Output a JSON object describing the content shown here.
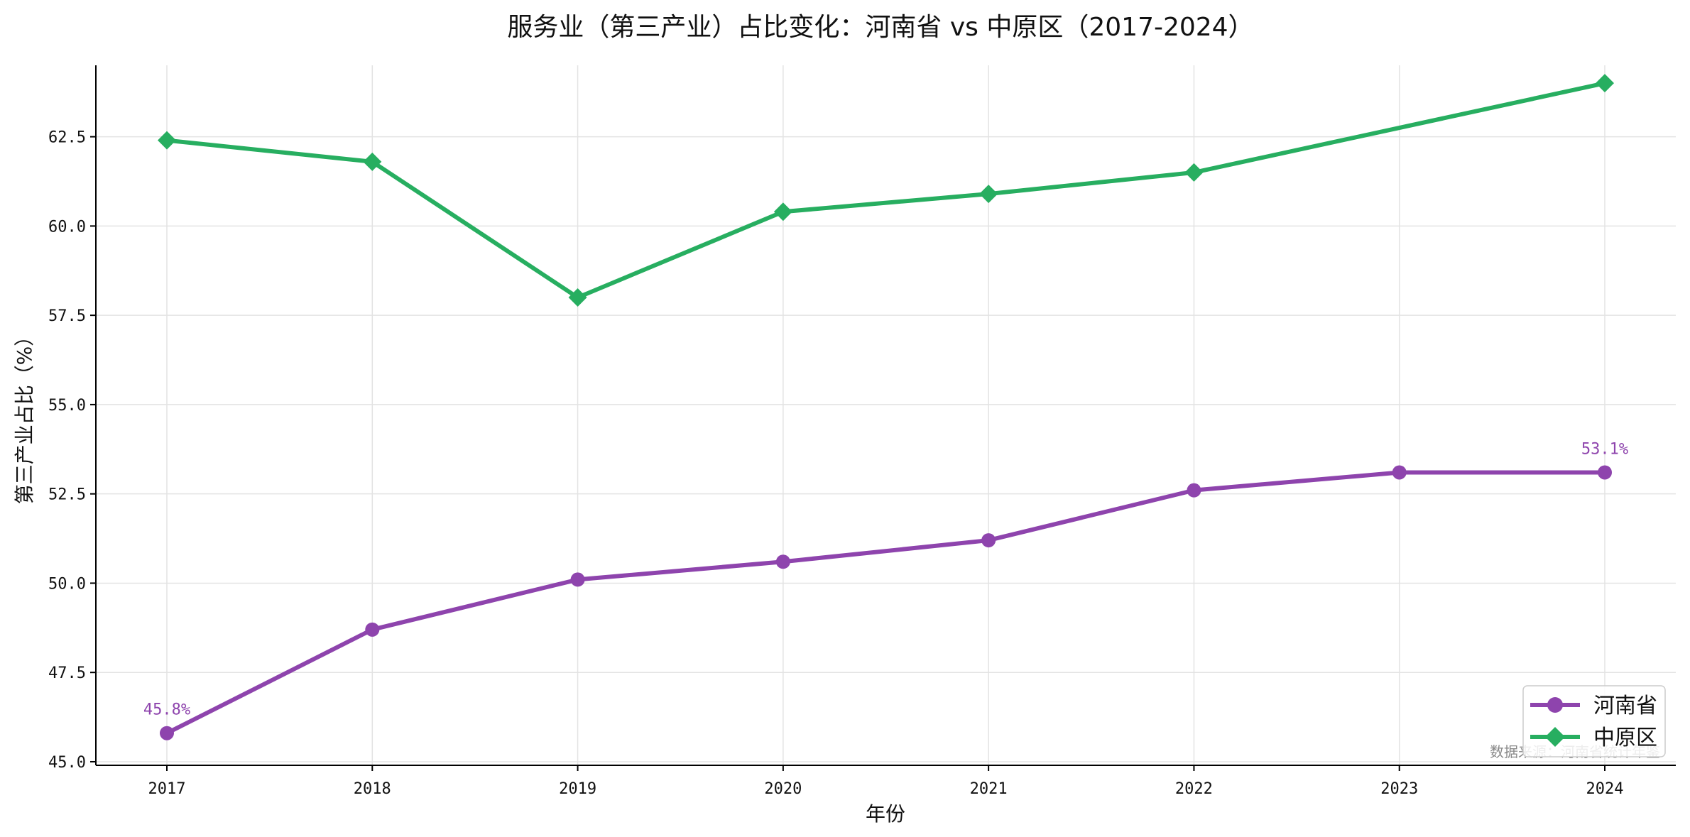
{
  "chart_data": {
    "type": "line",
    "title": "服务业（第三产业）占比变化：河南省 vs 中原区（2017-2024）",
    "xlabel": "年份",
    "ylabel": "第三产业占比（%）",
    "x": [
      "2017",
      "2018",
      "2019",
      "2020",
      "2021",
      "2022",
      "2023",
      "2024"
    ],
    "ylim": [
      44.9,
      64.5
    ],
    "yticks": [
      45.0,
      47.5,
      50.0,
      52.5,
      55.0,
      57.5,
      60.0,
      62.5
    ],
    "ytick_labels": [
      "45.0",
      "47.5",
      "50.0",
      "52.5",
      "55.0",
      "57.5",
      "60.0",
      "62.5"
    ],
    "grid": true,
    "legend_position": "lower-right",
    "series": [
      {
        "name": "河南省",
        "color": "#8e44ad",
        "marker": "circle",
        "values": [
          45.8,
          48.7,
          50.1,
          50.6,
          51.2,
          52.6,
          53.1,
          53.1
        ]
      },
      {
        "name": "中原区",
        "color": "#27ae60",
        "marker": "diamond",
        "values": [
          62.4,
          61.8,
          58.0,
          60.4,
          60.9,
          61.5,
          null,
          64.0
        ]
      }
    ],
    "annotations": [
      {
        "text": "45.8%",
        "series": 0,
        "index": 0
      },
      {
        "text": "53.1%",
        "series": 0,
        "index": 7
      }
    ],
    "source_note": "数据来源：河南省统计年鉴"
  }
}
